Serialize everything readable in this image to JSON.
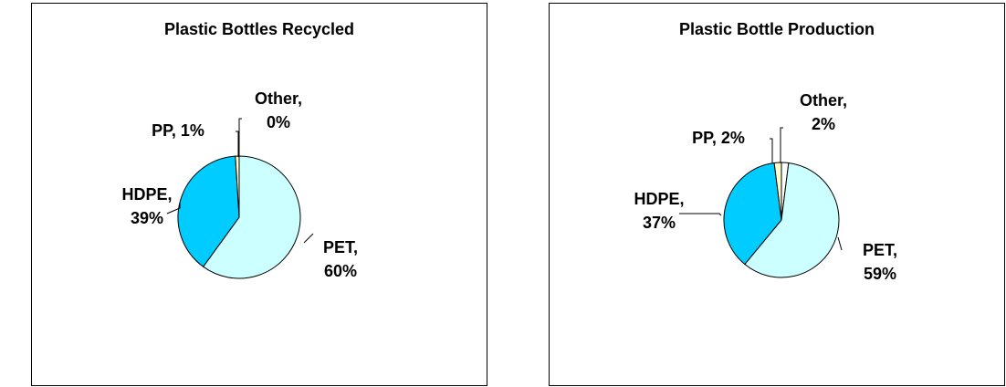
{
  "chart_data": [
    {
      "type": "pie",
      "title": "Plastic Bottles Recycled",
      "categories": [
        "PET",
        "HDPE",
        "PP",
        "Other"
      ],
      "values": [
        60,
        39,
        1,
        0
      ],
      "labels": [
        {
          "line1": "PET,",
          "line2": "60%"
        },
        {
          "line1": "HDPE,",
          "line2": "39%"
        },
        {
          "line1": "PP, 1%",
          "line2": ""
        },
        {
          "line1": "Other,",
          "line2": "0%"
        }
      ],
      "colors": [
        "#ccffff",
        "#00ccff",
        "#ffffcc",
        "#ffffff"
      ],
      "legend": "none"
    },
    {
      "type": "pie",
      "title": "Plastic Bottle Production",
      "categories": [
        "PET",
        "HDPE",
        "PP",
        "Other"
      ],
      "values": [
        59,
        37,
        2,
        2
      ],
      "labels": [
        {
          "line1": "PET,",
          "line2": "59%"
        },
        {
          "line1": "HDPE,",
          "line2": "37%"
        },
        {
          "line1": "PP, 2%",
          "line2": ""
        },
        {
          "line1": "Other,",
          "line2": "2%"
        }
      ],
      "colors": [
        "#ccffff",
        "#00ccff",
        "#ffffcc",
        "#ffffff"
      ],
      "legend": "none"
    }
  ]
}
